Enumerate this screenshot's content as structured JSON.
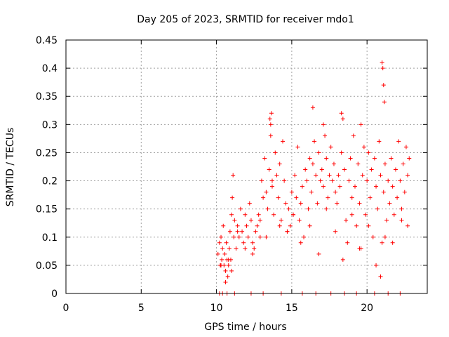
{
  "chart_data": {
    "type": "scatter",
    "title": "Day 205 of 2023, SRMTID for receiver mdo1",
    "xlabel": "GPS time / hours",
    "ylabel": "SRMTID / TECUs",
    "xlim": [
      0,
      24
    ],
    "ylim": [
      0,
      0.45
    ],
    "xticks": [
      0,
      5,
      10,
      15,
      20
    ],
    "yticks": [
      0,
      0.05,
      0.1,
      0.15,
      0.2,
      0.25,
      0.3,
      0.35,
      0.4,
      0.45
    ],
    "xtick_labels": [
      "0",
      "5",
      "10",
      "15",
      "20"
    ],
    "ytick_labels": [
      "0",
      "0.05",
      "0.1",
      "0.15",
      "0.2",
      "0.25",
      "0.3",
      "0.35",
      "0.4",
      "0.45"
    ],
    "grid": true,
    "marker": "+",
    "series": [
      {
        "name": "SRMTID",
        "color": "#ff0000",
        "x": [
          10.1,
          10.2,
          10.25,
          10.3,
          10.35,
          10.4,
          10.45,
          10.5,
          10.55,
          10.6,
          10.65,
          10.7,
          10.75,
          10.8,
          10.85,
          10.9,
          10.95,
          11.0,
          11.05,
          11.1,
          11.15,
          11.2,
          11.3,
          11.4,
          11.5,
          11.6,
          11.7,
          11.8,
          11.9,
          12.0,
          12.1,
          12.2,
          12.3,
          12.4,
          12.5,
          12.6,
          12.7,
          12.8,
          12.9,
          13.0,
          13.1,
          13.2,
          13.3,
          13.4,
          13.5,
          13.55,
          13.6,
          13.7,
          13.8,
          13.9,
          14.0,
          14.1,
          14.2,
          14.3,
          14.4,
          14.5,
          14.6,
          14.7,
          14.8,
          14.9,
          15.0,
          15.1,
          15.2,
          15.3,
          15.4,
          15.5,
          15.6,
          15.7,
          15.8,
          15.9,
          16.0,
          16.1,
          16.2,
          16.3,
          16.4,
          16.5,
          16.6,
          16.7,
          16.8,
          16.9,
          17.0,
          17.1,
          17.2,
          17.3,
          17.4,
          17.5,
          17.6,
          17.7,
          17.8,
          17.9,
          18.0,
          18.1,
          18.2,
          18.3,
          18.4,
          18.5,
          18.6,
          18.7,
          18.8,
          18.9,
          19.0,
          19.1,
          19.2,
          19.3,
          19.4,
          19.5,
          19.6,
          19.7,
          19.8,
          19.9,
          20.0,
          20.1,
          20.2,
          20.3,
          20.4,
          20.5,
          20.6,
          20.7,
          20.8,
          20.9,
          21.0,
          21.1,
          21.2,
          21.3,
          21.4,
          21.5,
          21.6,
          21.7,
          21.8,
          21.9,
          22.0,
          22.1,
          22.2,
          22.3,
          22.4,
          22.5,
          22.6,
          22.7,
          22.8,
          10.3,
          10.6,
          10.8,
          11.0,
          11.4,
          11.9,
          12.4,
          12.9,
          13.3,
          13.7,
          14.2,
          14.7,
          15.1,
          15.6,
          16.2,
          16.8,
          17.3,
          17.9,
          18.4,
          19.0,
          19.5,
          20.1,
          20.6,
          21.2,
          21.7,
          22.3,
          22.7,
          13.6,
          13.65,
          16.4,
          17.1,
          18.3,
          19.6,
          21.0,
          21.05,
          21.1,
          21.15,
          20.9,
          10.2,
          10.4,
          10.7,
          11.2,
          12.3,
          13.1,
          14.3,
          15.7,
          16.6,
          17.6,
          18.5,
          19.3,
          20.5,
          21.4,
          22.2
        ],
        "y": [
          0.07,
          0.09,
          0.05,
          0.1,
          0.06,
          0.08,
          0.12,
          0.05,
          0.07,
          0.04,
          0.09,
          0.06,
          0.03,
          0.05,
          0.08,
          0.11,
          0.06,
          0.14,
          0.17,
          0.21,
          0.1,
          0.13,
          0.08,
          0.12,
          0.1,
          0.15,
          0.11,
          0.09,
          0.14,
          0.12,
          0.1,
          0.16,
          0.13,
          0.09,
          0.08,
          0.11,
          0.12,
          0.14,
          0.1,
          0.2,
          0.17,
          0.24,
          0.18,
          0.15,
          0.22,
          0.31,
          0.28,
          0.19,
          0.14,
          0.25,
          0.21,
          0.17,
          0.23,
          0.13,
          0.27,
          0.2,
          0.16,
          0.11,
          0.15,
          0.12,
          0.18,
          0.14,
          0.21,
          0.17,
          0.26,
          0.13,
          0.16,
          0.19,
          0.1,
          0.22,
          0.2,
          0.15,
          0.24,
          0.18,
          0.23,
          0.27,
          0.21,
          0.16,
          0.25,
          0.2,
          0.22,
          0.19,
          0.28,
          0.24,
          0.17,
          0.21,
          0.26,
          0.2,
          0.23,
          0.18,
          0.16,
          0.21,
          0.19,
          0.25,
          0.31,
          0.22,
          0.13,
          0.09,
          0.2,
          0.24,
          0.17,
          0.28,
          0.19,
          0.12,
          0.23,
          0.16,
          0.08,
          0.21,
          0.26,
          0.14,
          0.2,
          0.25,
          0.17,
          0.22,
          0.1,
          0.24,
          0.19,
          0.15,
          0.27,
          0.21,
          0.09,
          0.18,
          0.23,
          0.13,
          0.2,
          0.16,
          0.24,
          0.19,
          0.14,
          0.22,
          0.17,
          0.27,
          0.2,
          0.15,
          0.23,
          0.18,
          0.26,
          0.21,
          0.24,
          0.05,
          0.02,
          0.06,
          0.04,
          0.11,
          0.08,
          0.07,
          0.13,
          0.1,
          0.2,
          0.12,
          0.11,
          0.14,
          0.09,
          0.12,
          0.07,
          0.15,
          0.11,
          0.06,
          0.14,
          0.08,
          0.12,
          0.05,
          0.1,
          0.09,
          0.13,
          0.12,
          0.3,
          0.32,
          0.33,
          0.3,
          0.32,
          0.3,
          0.41,
          0.4,
          0.37,
          0.34,
          0.03,
          0.0,
          0.0,
          0.0,
          0.0,
          0.0,
          0.0,
          0.0,
          0.0,
          0.0,
          0.0,
          0.0,
          0.0,
          0.0,
          0.0,
          0.0
        ]
      }
    ]
  }
}
